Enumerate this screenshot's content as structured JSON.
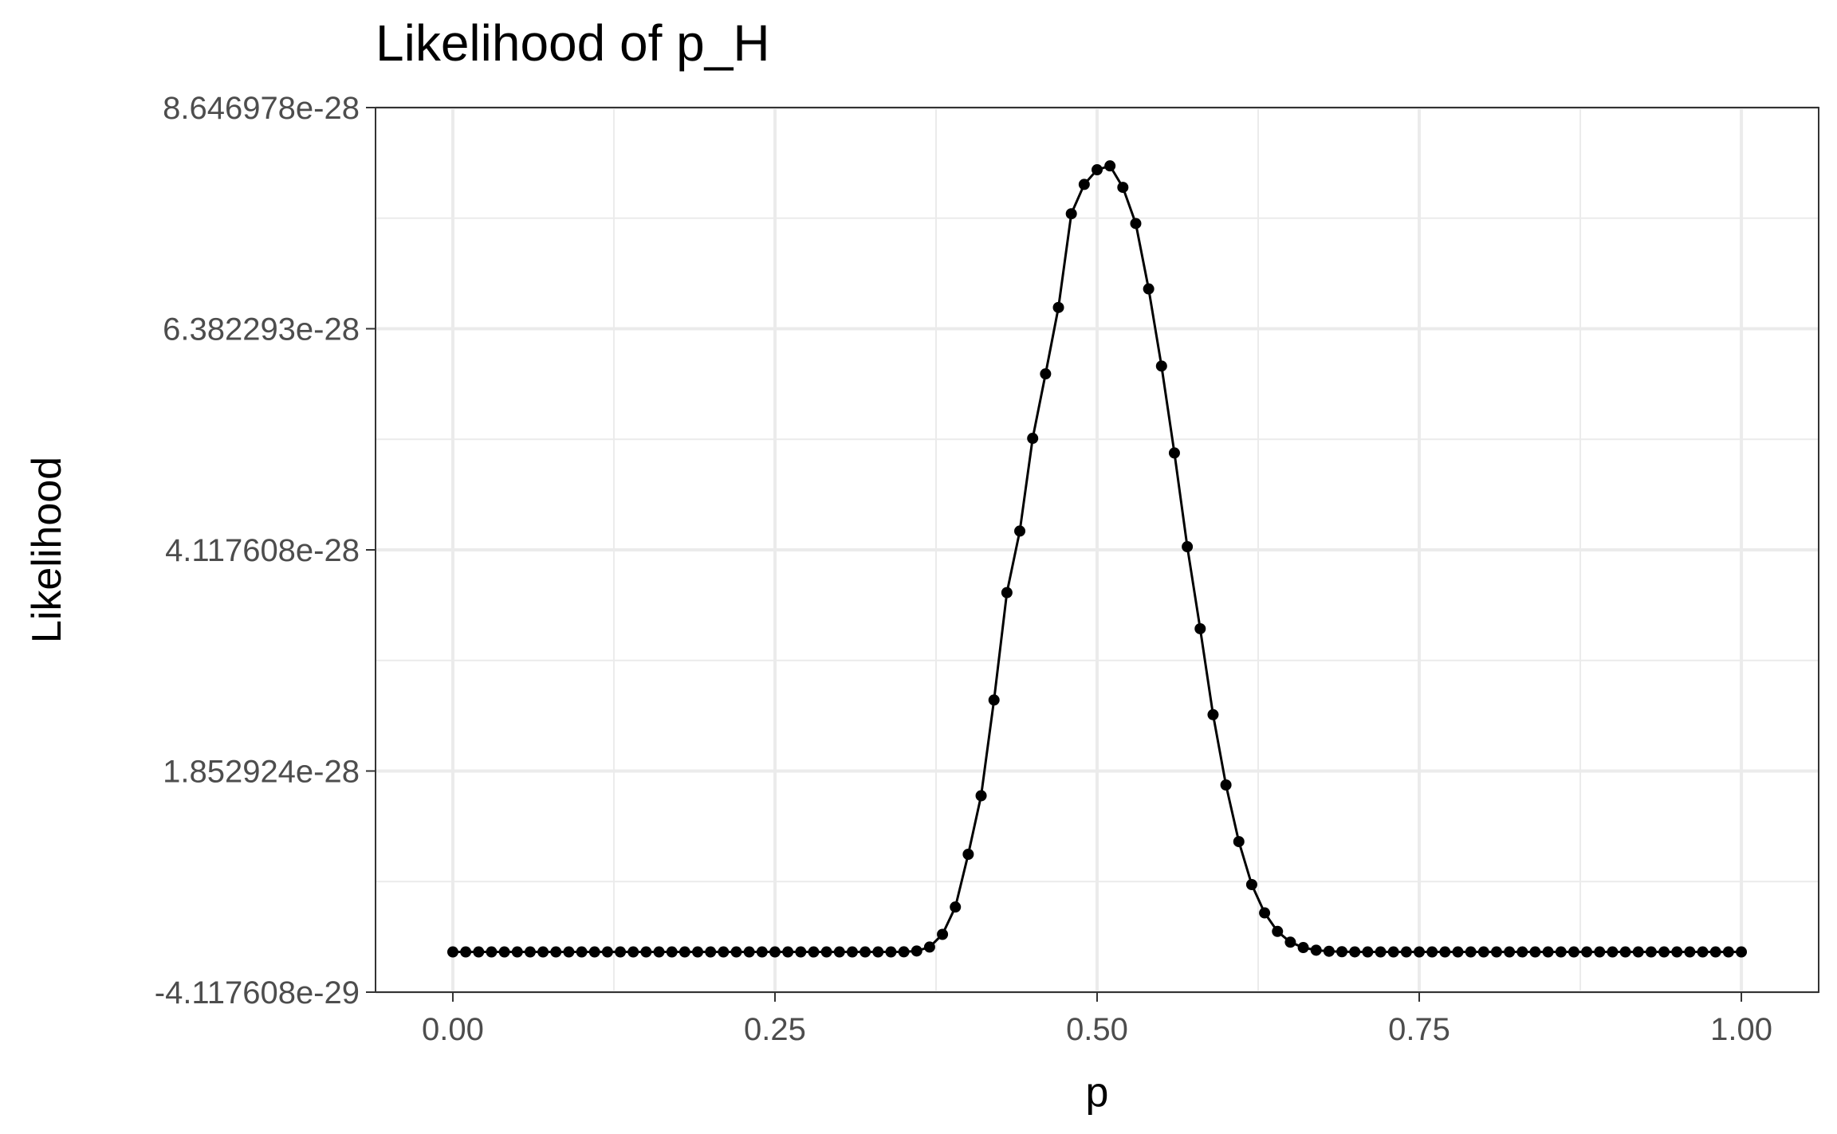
{
  "chart_data": {
    "type": "line",
    "title": "Likelihood of p_H",
    "xlabel": "p",
    "ylabel": "Likelihood",
    "xlim": [
      -0.06,
      1.06
    ],
    "ylim": [
      -4.117608e-29,
      8.646978e-28
    ],
    "x_ticks": [
      0.0,
      0.25,
      0.5,
      0.75,
      1.0
    ],
    "x_tick_labels": [
      "0.00",
      "0.25",
      "0.50",
      "0.75",
      "1.00"
    ],
    "y_ticks": [
      -4.117608e-29,
      1.852924e-28,
      4.117608e-28,
      6.382293e-28,
      8.646978e-28
    ],
    "y_tick_labels": [
      "-4.117608e-29",
      "1.852924e-28",
      "4.117608e-28",
      "6.382293e-28",
      "8.646978e-28"
    ],
    "grid": true,
    "markers": true,
    "x_points": [
      0.0,
      0.01,
      0.02,
      0.03,
      0.04,
      0.05,
      0.06,
      0.07,
      0.08,
      0.09,
      0.1,
      0.11,
      0.12,
      0.13,
      0.14,
      0.15,
      0.16,
      0.17,
      0.18,
      0.19,
      0.2,
      0.21,
      0.22,
      0.23,
      0.24,
      0.25,
      0.26,
      0.27,
      0.28,
      0.29,
      0.3,
      0.31,
      0.32,
      0.33,
      0.34,
      0.35,
      0.36,
      0.37,
      0.38,
      0.39,
      0.4,
      0.41,
      0.42,
      0.43,
      0.44,
      0.45,
      0.46,
      0.47,
      0.48,
      0.49,
      0.5,
      0.51,
      0.52,
      0.53,
      0.54,
      0.55,
      0.56,
      0.57,
      0.58,
      0.59,
      0.6,
      0.61,
      0.62,
      0.63,
      0.64,
      0.65,
      0.66,
      0.67,
      0.68,
      0.69,
      0.7,
      0.71,
      0.72,
      0.73,
      0.74,
      0.75,
      0.76,
      0.77,
      0.78,
      0.79,
      0.8,
      0.81,
      0.82,
      0.83,
      0.84,
      0.85,
      0.86,
      0.87,
      0.88,
      0.89,
      0.9,
      0.91,
      0.92,
      0.93,
      0.94,
      0.95,
      0.96,
      0.97,
      0.98,
      0.99,
      1.0
    ],
    "y_points": [
      0,
      0,
      0,
      0,
      0,
      0,
      0,
      0,
      0,
      0,
      0,
      0,
      0,
      0,
      0,
      0,
      0,
      0,
      0,
      0,
      0,
      0,
      0,
      0,
      0,
      0,
      0,
      0,
      0,
      0,
      0,
      0,
      0,
      0,
      0,
      1e-31,
      1e-30,
      5e-30,
      1.8e-29,
      4.6e-29,
      1e-28,
      1.6e-28,
      2.58e-28,
      3.68e-28,
      4.31e-28,
      5.26e-28,
      5.92e-28,
      6.6e-28,
      7.56e-28,
      7.86e-28,
      8.01e-28,
      8.05e-28,
      7.83e-28,
      7.46e-28,
      6.79e-28,
      6e-28,
      5.11e-28,
      4.15e-28,
      3.31e-28,
      2.43e-28,
      1.71e-28,
      1.13e-28,
      6.9e-29,
      4e-29,
      2.1e-29,
      1e-29,
      4.5e-30,
      1.8e-30,
      7e-31,
      2.5e-31,
      8e-32,
      2e-32,
      0,
      0,
      0,
      0,
      0,
      0,
      0,
      0,
      0,
      0,
      0,
      0,
      0,
      0,
      0,
      0,
      0,
      0,
      0,
      0,
      0,
      0,
      0,
      0,
      0,
      0,
      0,
      0,
      0
    ]
  }
}
